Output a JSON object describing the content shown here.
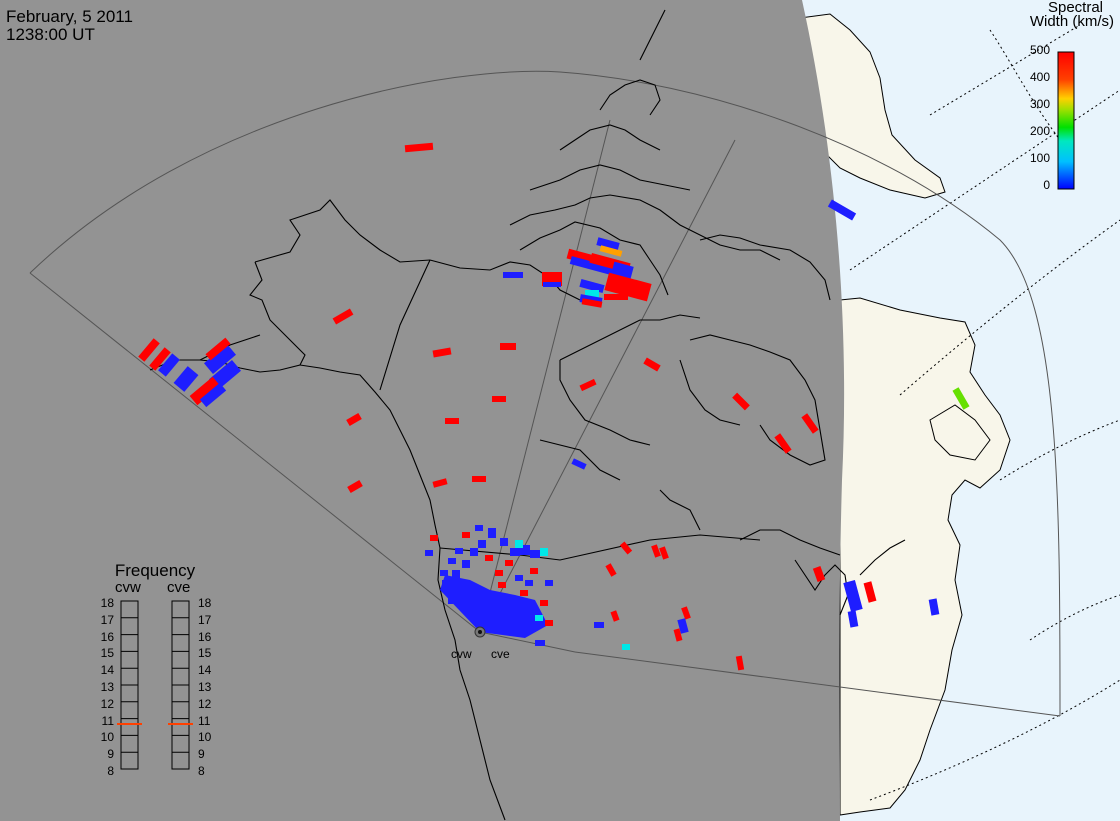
{
  "header": {
    "date": "February, 5 2011",
    "time": "1238:00 UT"
  },
  "colorbar": {
    "title_line1": "Spectral",
    "title_line2": "Width (km/s)",
    "ticks": [
      "500",
      "400",
      "300",
      "200",
      "100",
      "0"
    ]
  },
  "frequency": {
    "title": "Frequency",
    "cvw_label": "cvw",
    "cve_label": "cve",
    "scale": [
      "18",
      "17",
      "16",
      "15",
      "14",
      "13",
      "12",
      "11",
      "10",
      "9",
      "8"
    ],
    "cvw_value_mhz": 10.8,
    "cve_value_mhz": 10.8
  },
  "radars": {
    "west": "cvw",
    "east": "cve"
  },
  "colors": {
    "night": "#939393",
    "ocean_day": "#e8f4fc",
    "land_day": "#f8f6ea",
    "red": "#ff0000",
    "blue": "#1e1eff",
    "cyan": "#00e8e8",
    "green": "#66e000",
    "orange": "#ffa000",
    "freq_marker": "#ff4000"
  }
}
